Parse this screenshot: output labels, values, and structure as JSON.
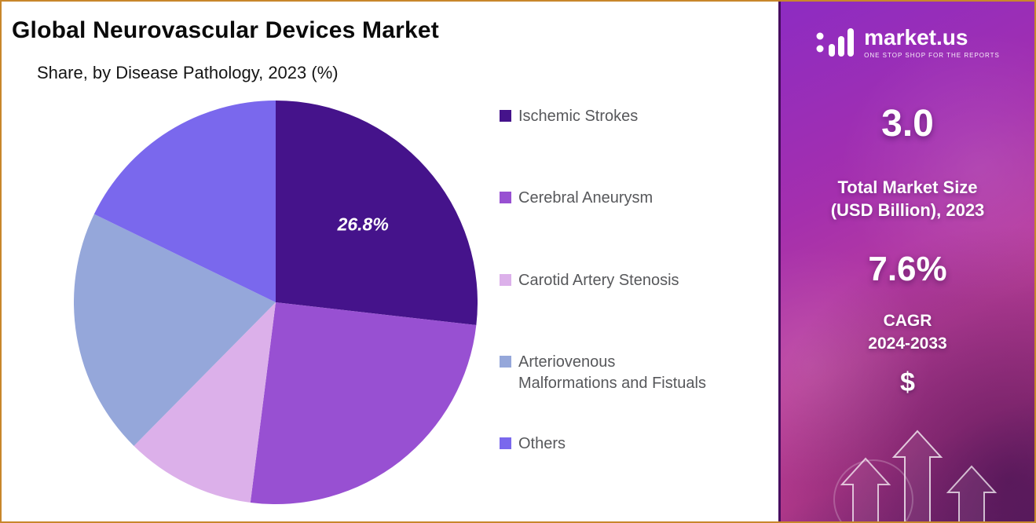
{
  "frame": {
    "border_color": "#c8872b"
  },
  "header": {
    "title": "Global Neurovascular Devices Market",
    "subtitle": "Share, by Disease Pathology, 2023 (%)"
  },
  "chart_data": {
    "type": "pie",
    "title": "Global Neurovascular Devices Market",
    "subtitle": "Share, by Disease Pathology, 2023 (%)",
    "unit": "percent",
    "start_angle_deg": 0,
    "direction": "clockwise",
    "legend_position": "right",
    "labels": [
      "Ischemic Strokes",
      "Cerebral Aneurysm",
      "Carotid Artery Stenosis",
      "Arteriovenous Malformations and Fistuals",
      "Others"
    ],
    "values": [
      26.8,
      25.2,
      10.4,
      19.8,
      17.8
    ],
    "colors": [
      "#45138b",
      "#9850d2",
      "#dcb0ea",
      "#95a7da",
      "#7a68ed"
    ],
    "data_label": {
      "slice_index": 0,
      "text": "26.8%"
    }
  },
  "legend": {
    "items": [
      {
        "label": "Ischemic Strokes",
        "color": "#45138b"
      },
      {
        "label": "Cerebral Aneurysm",
        "color": "#9850d2"
      },
      {
        "label": "Carotid Artery Stenosis",
        "color": "#dcb0ea"
      },
      {
        "label": "Arteriovenous",
        "label2": "Malformations and Fistuals",
        "color": "#95a7da"
      },
      {
        "label": "Others",
        "color": "#7a68ed"
      }
    ]
  },
  "panel": {
    "brand": "market.us",
    "tagline": "ONE STOP SHOP FOR THE REPORTS",
    "market_size_value": "3.0",
    "market_size_label_line1": "Total Market Size",
    "market_size_label_line2": "(USD Billion), 2023",
    "cagr_value": "7.6%",
    "cagr_label_line1": "CAGR",
    "cagr_label_line2": "2024-2033",
    "currency_symbol": "$",
    "gradient_top": "#8d2cc2",
    "gradient_bottom": "#7c2a74"
  }
}
